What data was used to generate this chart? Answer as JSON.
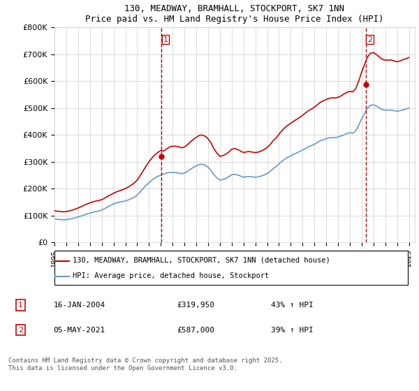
{
  "title": "130, MEADWAY, BRAMHALL, STOCKPORT, SK7 1NN",
  "subtitle": "Price paid vs. HM Land Registry's House Price Index (HPI)",
  "ylabel": "",
  "ylim": [
    0,
    800000
  ],
  "yticks": [
    0,
    100000,
    200000,
    300000,
    400000,
    500000,
    600000,
    700000,
    800000
  ],
  "ytick_labels": [
    "£0",
    "£100K",
    "£200K",
    "£300K",
    "£400K",
    "£500K",
    "£600K",
    "£700K",
    "£800K"
  ],
  "xlim_start": 1995.0,
  "xlim_end": 2025.5,
  "sale1_year": 2004.04,
  "sale1_price": 319950,
  "sale2_year": 2021.34,
  "sale2_price": 587000,
  "line_color_red": "#cc0000",
  "line_color_blue": "#6699cc",
  "vline_color": "#cc0000",
  "legend_label_red": "130, MEADWAY, BRAMHALL, STOCKPORT, SK7 1NN (detached house)",
  "legend_label_blue": "HPI: Average price, detached house, Stockport",
  "note1_label": "1",
  "note1_date": "16-JAN-2004",
  "note1_price": "£319,950",
  "note1_hpi": "43% ↑ HPI",
  "note2_label": "2",
  "note2_date": "05-MAY-2021",
  "note2_price": "£587,000",
  "note2_hpi": "39% ↑ HPI",
  "footer": "Contains HM Land Registry data © Crown copyright and database right 2025.\nThis data is licensed under the Open Government Licence v3.0.",
  "hpi_years": [
    1995.0,
    1995.25,
    1995.5,
    1995.75,
    1996.0,
    1996.25,
    1996.5,
    1996.75,
    1997.0,
    1997.25,
    1997.5,
    1997.75,
    1998.0,
    1998.25,
    1998.5,
    1998.75,
    1999.0,
    1999.25,
    1999.5,
    1999.75,
    2000.0,
    2000.25,
    2000.5,
    2000.75,
    2001.0,
    2001.25,
    2001.5,
    2001.75,
    2002.0,
    2002.25,
    2002.5,
    2002.75,
    2003.0,
    2003.25,
    2003.5,
    2003.75,
    2004.0,
    2004.25,
    2004.5,
    2004.75,
    2005.0,
    2005.25,
    2005.5,
    2005.75,
    2006.0,
    2006.25,
    2006.5,
    2006.75,
    2007.0,
    2007.25,
    2007.5,
    2007.75,
    2008.0,
    2008.25,
    2008.5,
    2008.75,
    2009.0,
    2009.25,
    2009.5,
    2009.75,
    2010.0,
    2010.25,
    2010.5,
    2010.75,
    2011.0,
    2011.25,
    2011.5,
    2011.75,
    2012.0,
    2012.25,
    2012.5,
    2012.75,
    2013.0,
    2013.25,
    2013.5,
    2013.75,
    2014.0,
    2014.25,
    2014.5,
    2014.75,
    2015.0,
    2015.25,
    2015.5,
    2015.75,
    2016.0,
    2016.25,
    2016.5,
    2016.75,
    2017.0,
    2017.25,
    2017.5,
    2017.75,
    2018.0,
    2018.25,
    2018.5,
    2018.75,
    2019.0,
    2019.25,
    2019.5,
    2019.75,
    2020.0,
    2020.25,
    2020.5,
    2020.75,
    2021.0,
    2021.25,
    2021.5,
    2021.75,
    2022.0,
    2022.25,
    2022.5,
    2022.75,
    2023.0,
    2023.25,
    2023.5,
    2023.75,
    2024.0,
    2024.25,
    2024.5,
    2024.75,
    2025.0
  ],
  "hpi_values": [
    88000,
    86000,
    85000,
    84000,
    85000,
    87000,
    89000,
    91000,
    95000,
    98000,
    102000,
    106000,
    109000,
    112000,
    115000,
    117000,
    120000,
    126000,
    132000,
    138000,
    143000,
    147000,
    150000,
    152000,
    154000,
    158000,
    163000,
    168000,
    176000,
    188000,
    200000,
    212000,
    222000,
    232000,
    240000,
    246000,
    250000,
    255000,
    258000,
    260000,
    260000,
    260000,
    258000,
    256000,
    258000,
    264000,
    272000,
    279000,
    285000,
    290000,
    291000,
    287000,
    280000,
    268000,
    252000,
    240000,
    232000,
    234000,
    238000,
    244000,
    252000,
    253000,
    251000,
    247000,
    242000,
    245000,
    245000,
    244000,
    242000,
    244000,
    247000,
    251000,
    256000,
    264000,
    274000,
    282000,
    292000,
    302000,
    310000,
    317000,
    322000,
    328000,
    333000,
    338000,
    344000,
    350000,
    356000,
    360000,
    365000,
    372000,
    378000,
    382000,
    386000,
    389000,
    390000,
    390000,
    392000,
    396000,
    400000,
    405000,
    408000,
    406000,
    415000,
    435000,
    460000,
    480000,
    500000,
    510000,
    512000,
    507000,
    500000,
    494000,
    492000,
    492000,
    492000,
    490000,
    488000,
    490000,
    493000,
    496000,
    500000
  ],
  "red_years": [
    1995.0,
    1995.25,
    1995.5,
    1995.75,
    1996.0,
    1996.25,
    1996.5,
    1996.75,
    1997.0,
    1997.25,
    1997.5,
    1997.75,
    1998.0,
    1998.25,
    1998.5,
    1998.75,
    1999.0,
    1999.25,
    1999.5,
    1999.75,
    2000.0,
    2000.25,
    2000.5,
    2000.75,
    2001.0,
    2001.25,
    2001.5,
    2001.75,
    2002.0,
    2002.25,
    2002.5,
    2002.75,
    2003.0,
    2003.25,
    2003.5,
    2003.75,
    2004.0,
    2004.25,
    2004.5,
    2004.75,
    2005.0,
    2005.25,
    2005.5,
    2005.75,
    2006.0,
    2006.25,
    2006.5,
    2006.75,
    2007.0,
    2007.25,
    2007.5,
    2007.75,
    2008.0,
    2008.25,
    2008.5,
    2008.75,
    2009.0,
    2009.25,
    2009.5,
    2009.75,
    2010.0,
    2010.25,
    2010.5,
    2010.75,
    2011.0,
    2011.25,
    2011.5,
    2011.75,
    2012.0,
    2012.25,
    2012.5,
    2012.75,
    2013.0,
    2013.25,
    2013.5,
    2013.75,
    2014.0,
    2014.25,
    2014.5,
    2014.75,
    2015.0,
    2015.25,
    2015.5,
    2015.75,
    2016.0,
    2016.25,
    2016.5,
    2016.75,
    2017.0,
    2017.25,
    2017.5,
    2017.75,
    2018.0,
    2018.25,
    2018.5,
    2018.75,
    2019.0,
    2019.25,
    2019.5,
    2019.75,
    2020.0,
    2020.25,
    2020.5,
    2020.75,
    2021.0,
    2021.25,
    2021.5,
    2021.75,
    2022.0,
    2022.25,
    2022.5,
    2022.75,
    2023.0,
    2023.25,
    2023.5,
    2023.75,
    2024.0,
    2024.25,
    2024.5,
    2024.75,
    2025.0
  ],
  "red_values": [
    118000,
    116000,
    115000,
    114000,
    115000,
    117000,
    120000,
    124000,
    128000,
    133000,
    138000,
    143000,
    147000,
    151000,
    154000,
    156000,
    159000,
    165000,
    171000,
    177000,
    183000,
    188000,
    192000,
    196000,
    200000,
    206000,
    213000,
    221000,
    232000,
    248000,
    266000,
    284000,
    300000,
    314000,
    326000,
    335000,
    342000,
    340000,
    348000,
    355000,
    358000,
    358000,
    356000,
    352000,
    355000,
    363000,
    374000,
    383000,
    391000,
    398000,
    400000,
    395000,
    386000,
    370000,
    348000,
    332000,
    320000,
    323000,
    328000,
    336000,
    347000,
    349000,
    346000,
    340000,
    334000,
    337000,
    338000,
    336000,
    334000,
    336000,
    340000,
    346000,
    353000,
    364000,
    378000,
    388000,
    402000,
    416000,
    427000,
    436000,
    443000,
    451000,
    458000,
    465000,
    473000,
    482000,
    490000,
    496000,
    503000,
    512000,
    521000,
    527000,
    532000,
    536000,
    538000,
    537000,
    540000,
    545000,
    552000,
    558000,
    562000,
    560000,
    572000,
    600000,
    634000,
    662000,
    690000,
    704000,
    706000,
    699000,
    690000,
    681000,
    678000,
    678000,
    679000,
    675000,
    672000,
    675000,
    680000,
    683000,
    688000
  ]
}
